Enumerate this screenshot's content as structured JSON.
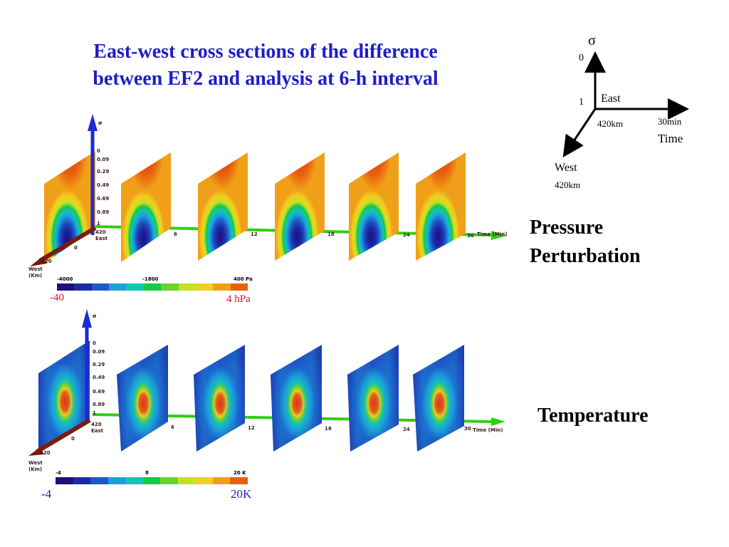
{
  "title": {
    "line1": "East-west cross sections of the difference",
    "line2": "between EF2 and analysis at 6-h interval"
  },
  "legend_axes": {
    "sigma": "σ",
    "sigma_top": "0",
    "sigma_bottom": "1",
    "east": "East",
    "east_dist": "420km",
    "time_step": "30min",
    "time": "Time",
    "west": "West",
    "west_dist": "420km"
  },
  "pressure": {
    "label_line1": "Pressure",
    "label_line2": "Perturbation",
    "colorbar_min": "-40",
    "colorbar_max": "4 hPa",
    "bar_tick_left": "-4000",
    "bar_tick_mid": "-1800",
    "bar_tick_right": "400 Pa",
    "time_ticks": [
      "6",
      "12",
      "18",
      "24"
    ],
    "time_axis_end": "30",
    "time_axis_label": "Time (Min)",
    "sigma_ticks": [
      "0",
      "0.09",
      "0.29",
      "0.49",
      "0.69",
      "0.89",
      "1"
    ],
    "east_tick": "420",
    "east_label": "East",
    "origin": "0",
    "west_tick": "420",
    "west_label": "West",
    "west_unit": "(Km)",
    "colors": [
      "#1f0f7a",
      "#1d2aa8",
      "#1e58c8",
      "#1ba0d8",
      "#14c4b4",
      "#14c848",
      "#6ad42a",
      "#c6e024",
      "#f0d020",
      "#f0a018",
      "#e86010"
    ]
  },
  "temperature": {
    "label": "Temperature",
    "colorbar_min": "-4",
    "colorbar_max": "20K",
    "bar_tick_left": "-4",
    "bar_tick_mid": "8",
    "bar_tick_right": "20 K",
    "time_ticks": [
      "6",
      "12",
      "18",
      "24"
    ],
    "time_axis_end": "30",
    "time_axis_label": "Time (Min)",
    "sigma_ticks": [
      "0",
      "0.09",
      "0.29",
      "0.49",
      "0.69",
      "0.89",
      "1"
    ],
    "east_tick": "420",
    "east_label": "East",
    "origin": "0",
    "west_tick": "420",
    "west_label": "West",
    "west_unit": "(Km)",
    "colors": [
      "#1f0f7a",
      "#1d2aa8",
      "#1e58c8",
      "#1ba0d8",
      "#14c4b4",
      "#14c848",
      "#6ad42a",
      "#c6e024",
      "#f0d020",
      "#f0a018",
      "#e86010"
    ]
  }
}
